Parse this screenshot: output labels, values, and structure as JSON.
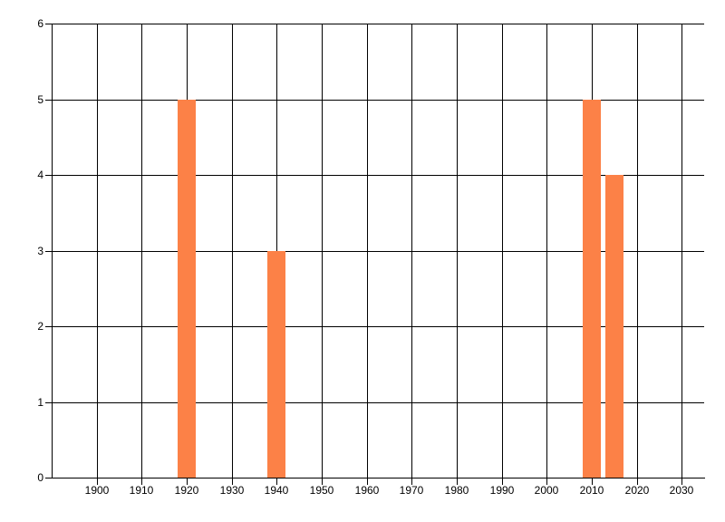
{
  "chart_data": {
    "type": "bar",
    "title": "",
    "xlabel": "",
    "ylabel": "",
    "x": [
      1920,
      1940,
      2010,
      2015
    ],
    "values": [
      5,
      3,
      5,
      4
    ],
    "bar_width_years": 4,
    "xlim": [
      1890,
      2035
    ],
    "ylim": [
      0,
      6
    ],
    "x_ticks": [
      1900,
      1910,
      1920,
      1930,
      1940,
      1950,
      1960,
      1970,
      1980,
      1990,
      2000,
      2010,
      2020,
      2030
    ],
    "y_ticks": [
      0,
      1,
      2,
      3,
      4,
      5,
      6
    ],
    "grid": true,
    "legend": null,
    "colors": {
      "bar": "#fc8147",
      "gridline": "#000000",
      "axis": "#000000",
      "label": "#000000",
      "background": "#ffffff"
    }
  }
}
